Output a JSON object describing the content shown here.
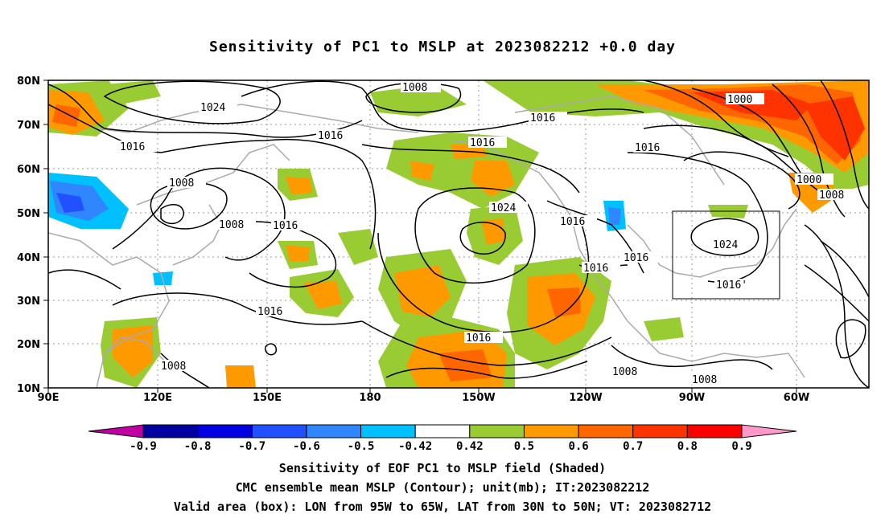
{
  "title": "Sensitivity of PC1 to MSLP at 2023082212 +0.0 day",
  "map": {
    "lon_labels": [
      "90E",
      "120E",
      "150E",
      "180",
      "150W",
      "120W",
      "90W",
      "60W"
    ],
    "lat_labels": [
      "80N",
      "70N",
      "60N",
      "50N",
      "40N",
      "30N",
      "20N",
      "10N"
    ],
    "contour_labels": [
      "1008",
      "1024",
      "1016",
      "1016",
      "1016",
      "1008",
      "1008",
      "1016",
      "1024",
      "1016",
      "1016",
      "1016",
      "1000",
      "1000",
      "1008",
      "1016",
      "1016",
      "1024",
      "1016'",
      "1008",
      "1008",
      "1008"
    ],
    "box": {
      "lon_from": "95W",
      "lon_to": "65W",
      "lat_from": "30N",
      "lat_to": "50N"
    },
    "colors": {
      "ocean": "#ffffff",
      "coast": "#aaaaaa",
      "contour": "#000000",
      "grid": "#888888"
    }
  },
  "colorbar": {
    "labels": [
      "-0.9",
      "-0.8",
      "-0.7",
      "-0.6",
      "-0.5",
      "-0.42",
      "0.42",
      "0.5",
      "0.6",
      "0.7",
      "0.8",
      "0.9"
    ],
    "colors": [
      "#c000a0",
      "#0000a0",
      "#0000e0",
      "#2050ff",
      "#2f86ff",
      "#00c0ff",
      "#ffffff",
      "#99cc33",
      "#ff9900",
      "#ff6600",
      "#ff3300",
      "#ff0000",
      "#ff99cc"
    ]
  },
  "captions": [
    "Sensitivity of EOF PC1 to MSLP field (Shaded)",
    "CMC ensemble mean MSLP (Contour); unit(mb); IT:2023082212",
    "Valid area (box): LON from 95W to 65W, LAT from 30N to 50N; VT: 2023082712"
  ]
}
